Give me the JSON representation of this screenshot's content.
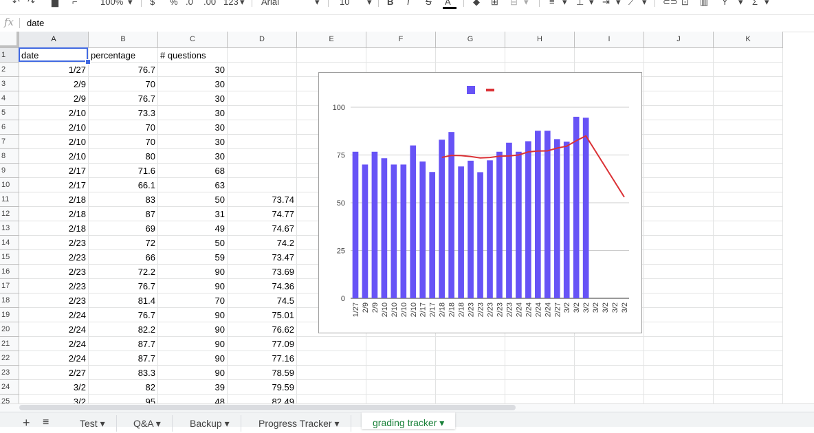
{
  "toolbar": {
    "zoom": "100%",
    "currency": "$",
    "percent": "%",
    "dec_decrease": ".0",
    "dec_increase": ".00",
    "format": "123",
    "font": "Arial",
    "font_size": "10",
    "bold": "B",
    "italic": "I",
    "strike": "S",
    "text_color": "A",
    "sum": "Σ"
  },
  "formula_bar": {
    "fx": "fx",
    "value": "date"
  },
  "columns": [
    "A",
    "B",
    "C",
    "D",
    "E",
    "F",
    "G",
    "H",
    "I",
    "J",
    "K"
  ],
  "rows": [
    {
      "n": "1",
      "a": "date",
      "b": "percentage",
      "c": "# questions",
      "d": ""
    },
    {
      "n": "2",
      "a": "1/27",
      "b": "76.7",
      "c": "30",
      "d": ""
    },
    {
      "n": "3",
      "a": "2/9",
      "b": "70",
      "c": "30",
      "d": ""
    },
    {
      "n": "4",
      "a": "2/9",
      "b": "76.7",
      "c": "30",
      "d": ""
    },
    {
      "n": "5",
      "a": "2/10",
      "b": "73.3",
      "c": "30",
      "d": ""
    },
    {
      "n": "6",
      "a": "2/10",
      "b": "70",
      "c": "30",
      "d": ""
    },
    {
      "n": "7",
      "a": "2/10",
      "b": "70",
      "c": "30",
      "d": ""
    },
    {
      "n": "8",
      "a": "2/10",
      "b": "80",
      "c": "30",
      "d": ""
    },
    {
      "n": "9",
      "a": "2/17",
      "b": "71.6",
      "c": "68",
      "d": ""
    },
    {
      "n": "10",
      "a": "2/17",
      "b": "66.1",
      "c": "63",
      "d": ""
    },
    {
      "n": "11",
      "a": "2/18",
      "b": "83",
      "c": "50",
      "d": "73.74"
    },
    {
      "n": "12",
      "a": "2/18",
      "b": "87",
      "c": "31",
      "d": "74.77"
    },
    {
      "n": "13",
      "a": "2/18",
      "b": "69",
      "c": "49",
      "d": "74.67"
    },
    {
      "n": "14",
      "a": "2/23",
      "b": "72",
      "c": "50",
      "d": "74.2"
    },
    {
      "n": "15",
      "a": "2/23",
      "b": "66",
      "c": "59",
      "d": "73.47"
    },
    {
      "n": "16",
      "a": "2/23",
      "b": "72.2",
      "c": "90",
      "d": "73.69"
    },
    {
      "n": "17",
      "a": "2/23",
      "b": "76.7",
      "c": "90",
      "d": "74.36"
    },
    {
      "n": "18",
      "a": "2/23",
      "b": "81.4",
      "c": "70",
      "d": "74.5"
    },
    {
      "n": "19",
      "a": "2/24",
      "b": "76.7",
      "c": "90",
      "d": "75.01"
    },
    {
      "n": "20",
      "a": "2/24",
      "b": "82.2",
      "c": "90",
      "d": "76.62"
    },
    {
      "n": "21",
      "a": "2/24",
      "b": "87.7",
      "c": "90",
      "d": "77.09"
    },
    {
      "n": "22",
      "a": "2/24",
      "b": "87.7",
      "c": "90",
      "d": "77.16"
    },
    {
      "n": "23",
      "a": "2/27",
      "b": "83.3",
      "c": "90",
      "d": "78.59"
    },
    {
      "n": "24",
      "a": "3/2",
      "b": "82",
      "c": "39",
      "d": "79.59"
    },
    {
      "n": "25",
      "a": "3/2",
      "b": "95",
      "c": "48",
      "d": "82.49"
    }
  ],
  "sheet_tabs": [
    {
      "label": "Test"
    },
    {
      "label": "Q&A"
    },
    {
      "label": "Backup"
    },
    {
      "label": "Progress Tracker"
    },
    {
      "label": "grading tracker"
    }
  ],
  "colors": {
    "bar": "#6753f6",
    "line": "#db3236",
    "active_tab": "#188038",
    "selection": "#4169e1"
  },
  "chart_data": {
    "type": "bar",
    "categories": [
      "1/27",
      "2/9",
      "2/9",
      "2/10",
      "2/10",
      "2/10",
      "2/10",
      "2/17",
      "2/17",
      "2/18",
      "2/18",
      "2/18",
      "2/23",
      "2/23",
      "2/23",
      "2/23",
      "2/23",
      "2/24",
      "2/24",
      "2/24",
      "2/24",
      "2/27",
      "3/2",
      "3/2",
      "3/2",
      "3/2",
      "3/2",
      "3/2",
      "3/2"
    ],
    "series": [
      {
        "type": "bar",
        "values": [
          76.7,
          70,
          76.7,
          73.3,
          70,
          70,
          80,
          71.6,
          66.1,
          83,
          87,
          69,
          72,
          66,
          72.2,
          76.7,
          81.4,
          76.7,
          82.2,
          87.7,
          87.7,
          83.3,
          82,
          95,
          94.5,
          null,
          null,
          null,
          null
        ]
      },
      {
        "type": "line",
        "values": [
          null,
          null,
          null,
          null,
          null,
          null,
          null,
          null,
          null,
          73.74,
          74.77,
          74.67,
          74.2,
          73.47,
          73.69,
          74.36,
          74.5,
          75.01,
          76.62,
          77.09,
          77.16,
          78.59,
          79.59,
          82.49,
          85,
          null,
          null,
          null,
          53
        ]
      }
    ],
    "ylim": [
      0,
      100
    ],
    "yticks": [
      "0",
      "25",
      "50",
      "75",
      "100"
    ],
    "legend": "top",
    "grid": true
  }
}
